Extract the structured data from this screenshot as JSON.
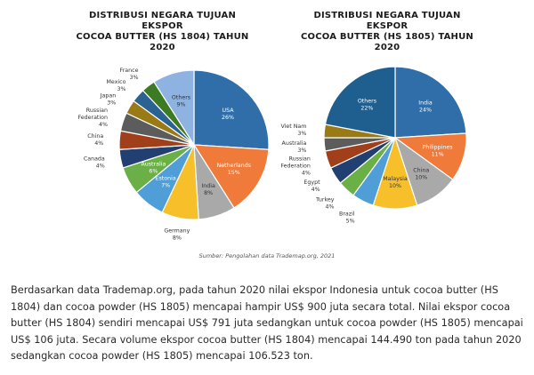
{
  "source_note": "Sumber: Pengolahan data Trademap.org, 2021",
  "paragraph": "Berdasarkan data Trademap.org, pada tahun 2020 nilai ekspor Indonesia untuk cocoa butter (HS 1804) dan cocoa powder (HS 1805) mencapai hampir US$ 900 juta secara total. Nilai ekspor cocoa butter (HS 1804) sendiri mencapai US$ 791 juta sedangkan untuk cocoa powder (HS 1805) mencapai US$ 106 juta. Secara volume ekspor cocoa butter (HS 1804) mencapai 144.490 ton pada tahun 2020 sedangkan cocoa powder (HS 1805) mencapai 106.523 ton.",
  "chart_data": [
    {
      "type": "pie",
      "title_lines": [
        "DISTRIBUSI NEGARA TUJUAN EKSPOR",
        "COCOA BUTTER (HS 1804) TAHUN",
        "2020"
      ],
      "slices": [
        {
          "label": "USA",
          "value": 26,
          "pct": "26%",
          "color": "#2f6ea8",
          "placement": "inside"
        },
        {
          "label": "Netherlands",
          "value": 15,
          "pct": "15%",
          "color": "#ef7a3a",
          "placement": "inside"
        },
        {
          "label": "India",
          "value": 8,
          "pct": "8%",
          "color": "#a9a9a9",
          "placement": "inside"
        },
        {
          "label": "Germany",
          "value": 8,
          "pct": "8%",
          "color": "#f7c02b",
          "placement": "outside"
        },
        {
          "label": "Estonia",
          "value": 7,
          "pct": "7%",
          "color": "#4f9ed8",
          "placement": "inside"
        },
        {
          "label": "Australia",
          "value": 6,
          "pct": "6%",
          "color": "#6ab047",
          "placement": "inside"
        },
        {
          "label": "Canada",
          "value": 4,
          "pct": "4%",
          "color": "#223f72",
          "placement": "outside"
        },
        {
          "label": "China",
          "value": 4,
          "pct": "4%",
          "color": "#a13f1a",
          "placement": "outside"
        },
        {
          "label": "Russian Federation",
          "value": 4,
          "pct": "4%",
          "color": "#5c5c5c",
          "placement": "outside"
        },
        {
          "label": "Japan",
          "value": 3,
          "pct": "3%",
          "color": "#9a7a14",
          "placement": "outside"
        },
        {
          "label": "Mexico",
          "value": 3,
          "pct": "3%",
          "color": "#2a6391",
          "placement": "outside"
        },
        {
          "label": "France",
          "value": 3,
          "pct": "3%",
          "color": "#3d7a24",
          "placement": "outside"
        },
        {
          "label": "Others",
          "value": 9,
          "pct": "9%",
          "color": "#8eb3e1",
          "placement": "inside"
        }
      ]
    },
    {
      "type": "pie",
      "title_lines": [
        "DISTRIBUSI NEGARA TUJUAN EKSPOR",
        "COCOA BUTTER (HS 1805) TAHUN",
        "2020"
      ],
      "slices": [
        {
          "label": "India",
          "value": 24,
          "pct": "24%",
          "color": "#2f6ea8",
          "placement": "inside"
        },
        {
          "label": "Philippines",
          "value": 11,
          "pct": "11%",
          "color": "#ef7a3a",
          "placement": "inside"
        },
        {
          "label": "China",
          "value": 10,
          "pct": "10%",
          "color": "#a9a9a9",
          "placement": "inside"
        },
        {
          "label": "Malaysia",
          "value": 10,
          "pct": "10%",
          "color": "#f7c02b",
          "placement": "inside"
        },
        {
          "label": "Brazil",
          "value": 5,
          "pct": "5%",
          "color": "#4f9ed8",
          "placement": "outside"
        },
        {
          "label": "Turkey",
          "value": 4,
          "pct": "4%",
          "color": "#6ab047",
          "placement": "outside"
        },
        {
          "label": "Egypt",
          "value": 4,
          "pct": "4%",
          "color": "#223f72",
          "placement": "outside"
        },
        {
          "label": "Russian Federation",
          "value": 4,
          "pct": "4%",
          "color": "#a13f1a",
          "placement": "outside"
        },
        {
          "label": "Australia",
          "value": 3,
          "pct": "3%",
          "color": "#5c5c5c",
          "placement": "outside"
        },
        {
          "label": "Viet Nam",
          "value": 3,
          "pct": "3%",
          "color": "#9a7a14",
          "placement": "outside"
        },
        {
          "label": "Others",
          "value": 22,
          "pct": "22%",
          "color": "#1f5f8f",
          "placement": "inside"
        }
      ]
    }
  ]
}
